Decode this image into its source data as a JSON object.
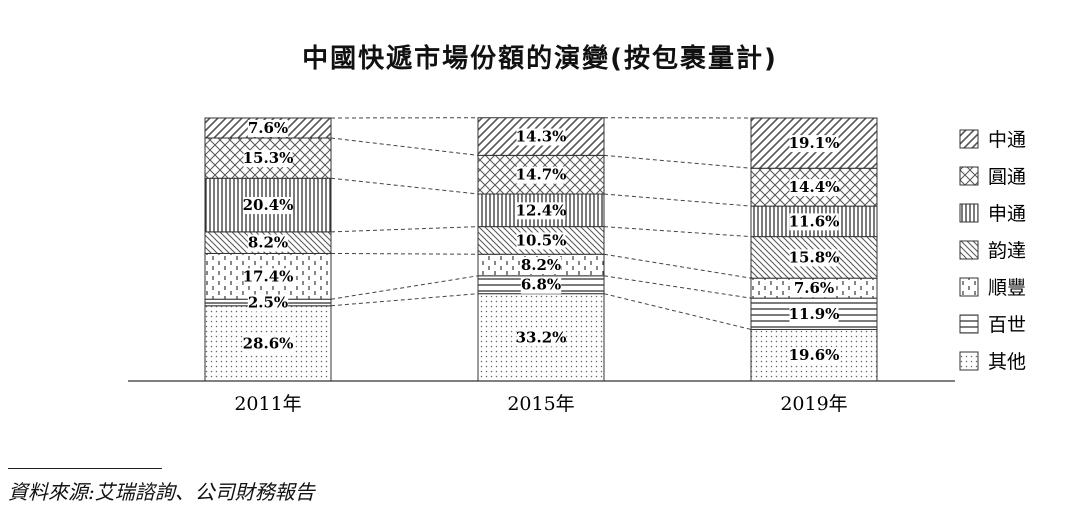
{
  "chart_data": {
    "type": "bar",
    "stacked": true,
    "title": "中國快遞市場份額的演變(按包裹量計)",
    "categories": [
      "2011年",
      "2015年",
      "2019年"
    ],
    "series": [
      {
        "name": "其他",
        "pattern": "dots",
        "values": [
          28.6,
          33.2,
          19.6
        ],
        "labels": [
          "28.6%",
          "33.2%",
          "19.6%"
        ]
      },
      {
        "name": "百世",
        "pattern": "hlines",
        "values": [
          2.5,
          6.8,
          11.9
        ],
        "labels": [
          "2.5%",
          "6.8%",
          "11.9%"
        ]
      },
      {
        "name": "順豐",
        "pattern": "dashes",
        "values": [
          17.4,
          8.2,
          7.6
        ],
        "labels": [
          "17.4%",
          "8.2%",
          "7.6%"
        ]
      },
      {
        "name": "韵達",
        "pattern": "backdiag",
        "values": [
          8.2,
          10.5,
          15.8
        ],
        "labels": [
          "8.2%",
          "10.5%",
          "15.8%"
        ]
      },
      {
        "name": "申通",
        "pattern": "vlines",
        "values": [
          20.4,
          12.4,
          11.6
        ],
        "labels": [
          "20.4%",
          "12.4%",
          "11.6%"
        ]
      },
      {
        "name": "圓通",
        "pattern": "crosshatch",
        "values": [
          15.3,
          14.7,
          14.4
        ],
        "labels": [
          "15.3%",
          "14.7%",
          "14.4%"
        ]
      },
      {
        "name": "中通",
        "pattern": "diag",
        "values": [
          7.6,
          14.3,
          19.1
        ],
        "labels": [
          "7.6%",
          "14.3%",
          "19.1%"
        ]
      }
    ],
    "legend_order": [
      "中通",
      "圓通",
      "申通",
      "韵達",
      "順豐",
      "百世",
      "其他"
    ],
    "legend_position": "right",
    "ylim": [
      0,
      100
    ],
    "grid": false,
    "connector_lines": "dashed"
  },
  "source_note": "資料來源:艾瑞諮詢、公司財務報告"
}
